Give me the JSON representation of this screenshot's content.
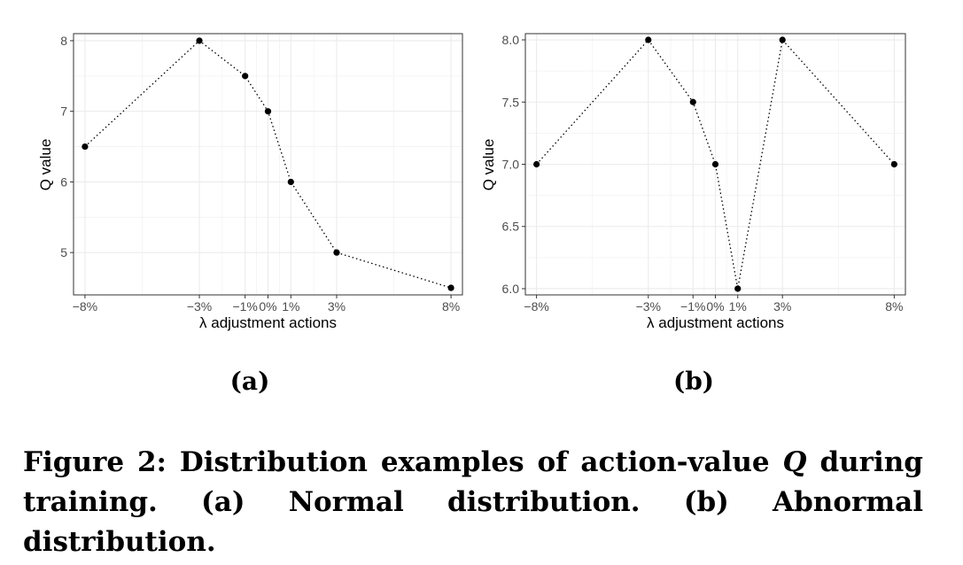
{
  "figure": {
    "caption_prefix": "Figure 2: Distribution examples of action-value ",
    "caption_var": "Q",
    "caption_mid": " during",
    "caption_line2": "training. (a) Normal distribution. (b) Abnormal distribution."
  },
  "chart_data": [
    {
      "type": "line",
      "panel_label": "(a)",
      "title": "",
      "xlabel": "λ adjustment actions",
      "ylabel": "Q value",
      "x_tick_labels": [
        "−8%",
        "−3%",
        "−1%",
        "0%",
        "1%",
        "3%",
        "8%"
      ],
      "x_values": [
        -8,
        -3,
        -1,
        0,
        1,
        3,
        8
      ],
      "y_ticks": [
        "5",
        "6",
        "7",
        "8"
      ],
      "y_tick_values": [
        5,
        6,
        7,
        8
      ],
      "xlim": [
        -8.5,
        8.5
      ],
      "ylim": [
        4.4,
        8.1
      ],
      "series": [
        {
          "x": [
            -8,
            -3,
            -1,
            0,
            1,
            3,
            8
          ],
          "y": [
            6.5,
            8.0,
            7.5,
            7.0,
            6.0,
            5.0,
            4.5
          ]
        }
      ],
      "grid": true
    },
    {
      "type": "line",
      "panel_label": "(b)",
      "title": "",
      "xlabel": "λ adjustment actions",
      "ylabel": "Q value",
      "x_tick_labels": [
        "−8%",
        "−3%",
        "−1%",
        "0%",
        "1%",
        "3%",
        "8%"
      ],
      "x_values": [
        -8,
        -3,
        -1,
        0,
        1,
        3,
        8
      ],
      "y_ticks": [
        "6.0",
        "6.5",
        "7.0",
        "7.5",
        "8.0"
      ],
      "y_tick_values": [
        6.0,
        6.5,
        7.0,
        7.5,
        8.0
      ],
      "xlim": [
        -8.5,
        8.5
      ],
      "ylim": [
        5.95,
        8.05
      ],
      "series": [
        {
          "x": [
            -8,
            -3,
            -1,
            0,
            1,
            3,
            8
          ],
          "y": [
            7.0,
            8.0,
            7.5,
            7.0,
            6.0,
            8.0,
            7.0
          ]
        }
      ],
      "grid": true
    }
  ]
}
